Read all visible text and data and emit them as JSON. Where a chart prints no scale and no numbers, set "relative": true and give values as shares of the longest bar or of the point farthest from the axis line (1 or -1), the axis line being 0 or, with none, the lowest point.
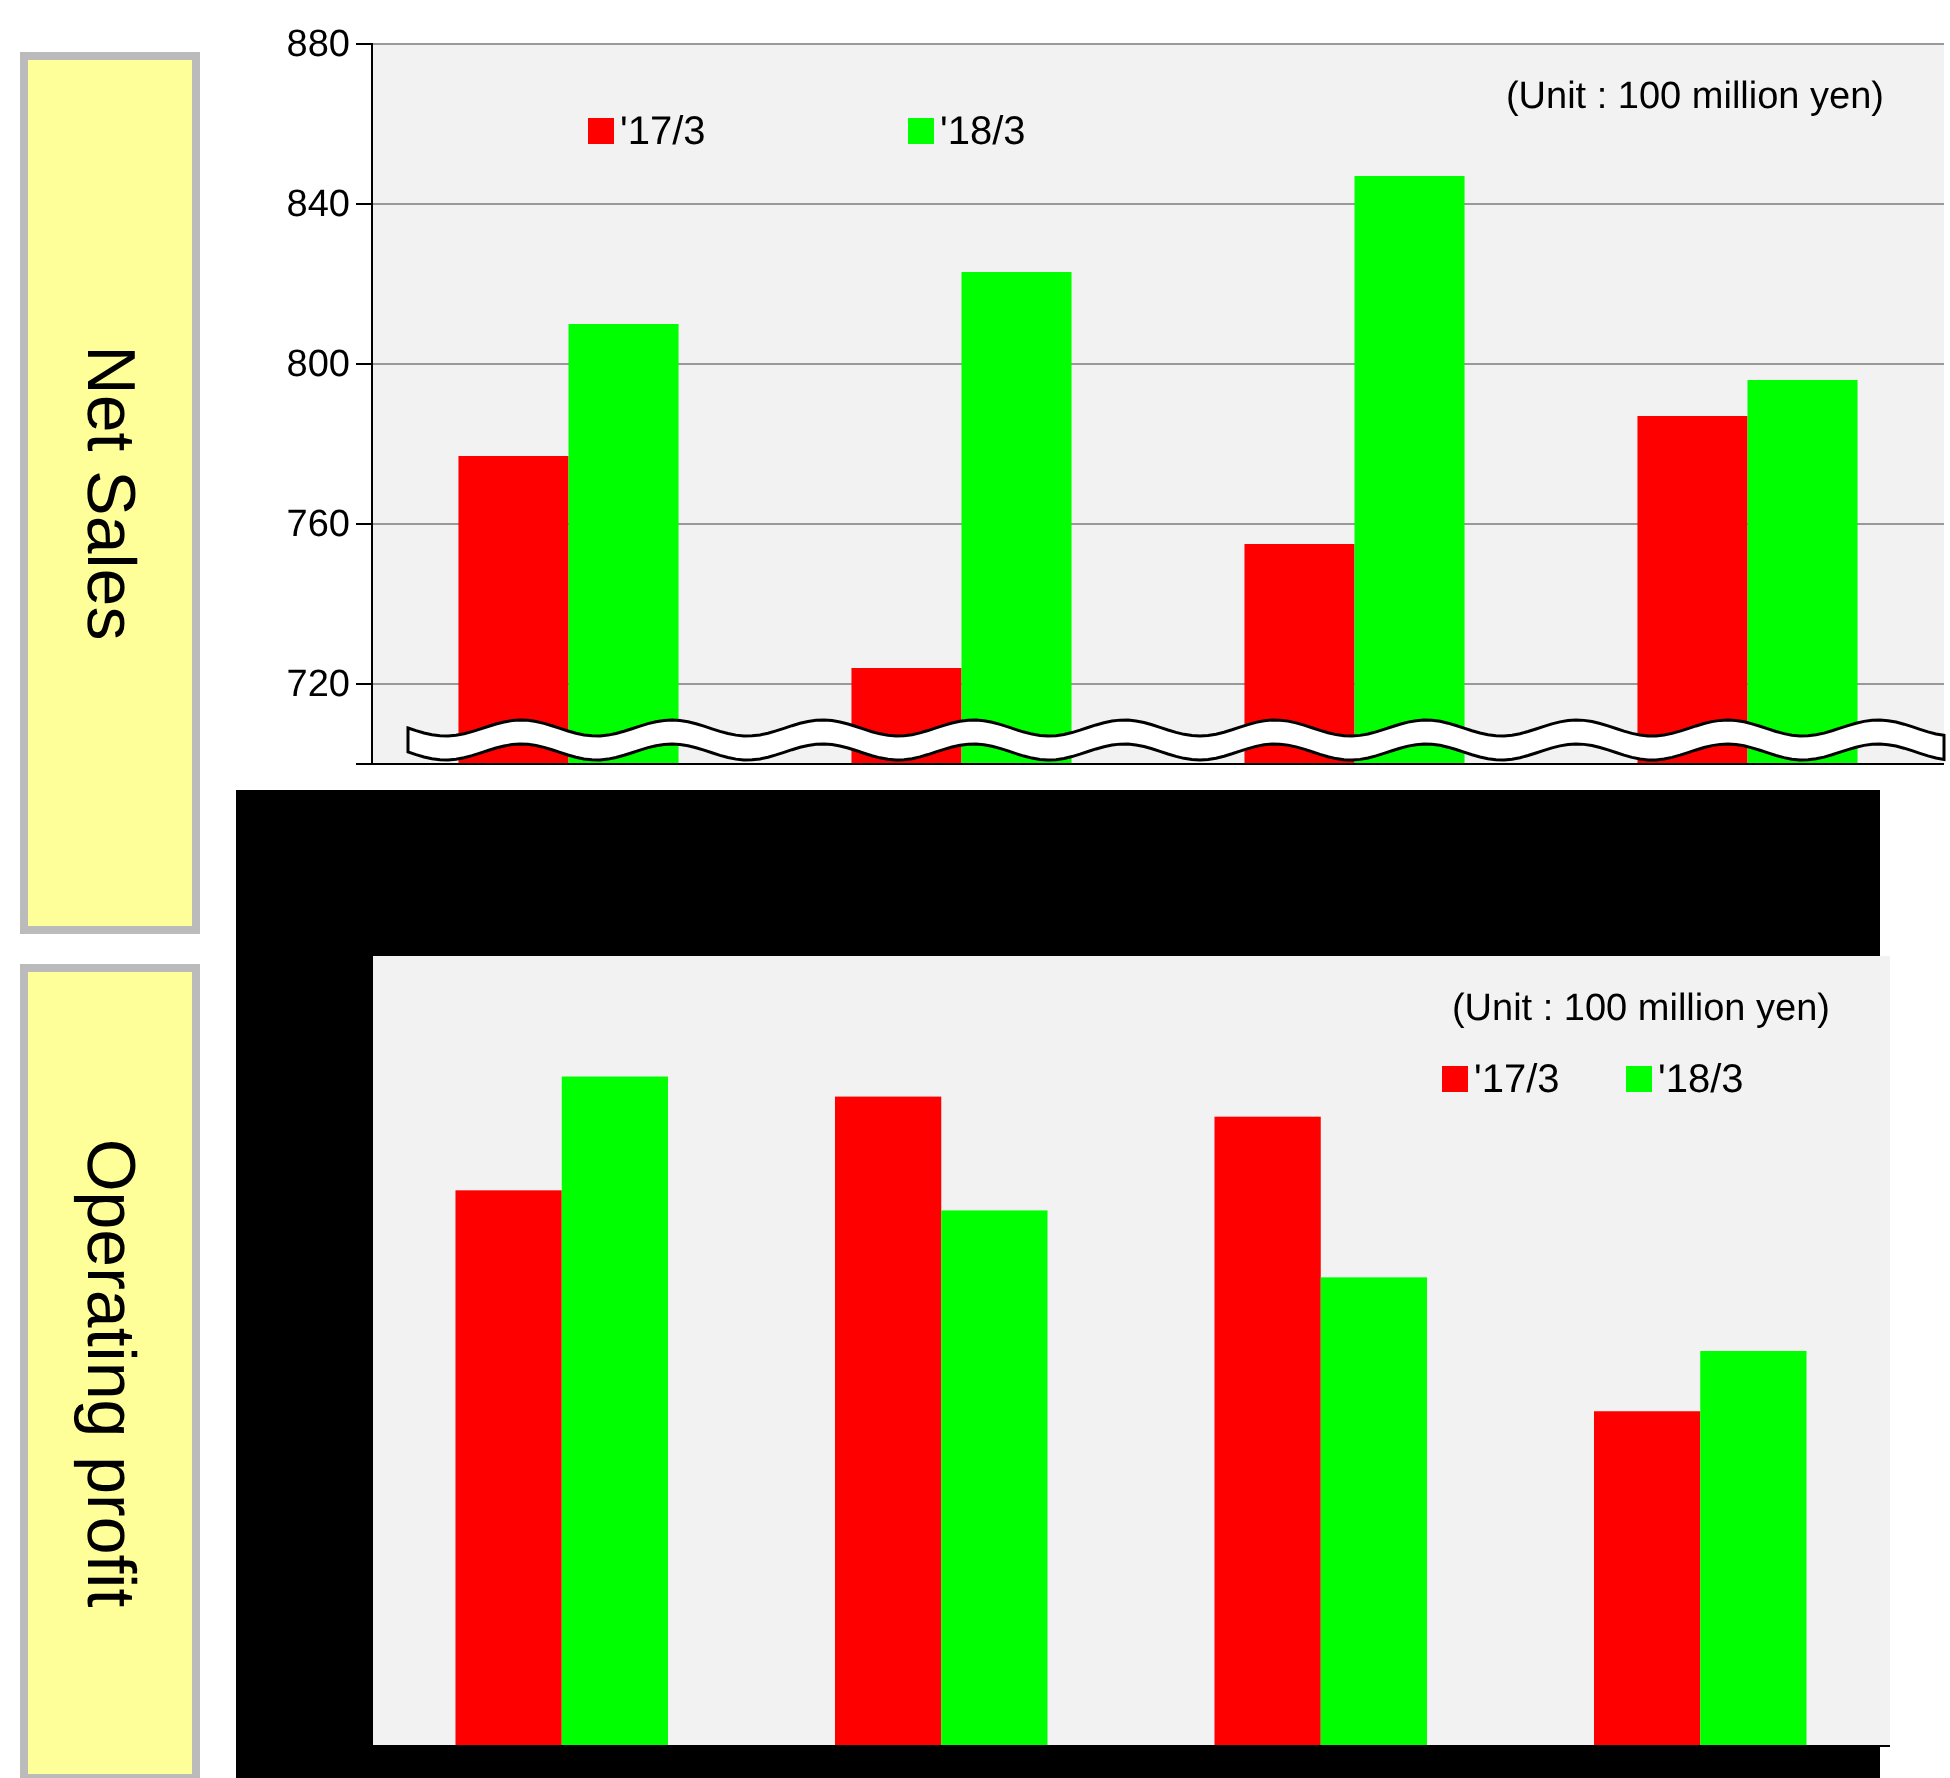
{
  "chart_data": [
    {
      "type": "bar",
      "ylabel": "Net Sales",
      "categories": [
        null,
        null,
        null,
        null
      ],
      "series": [
        {
          "name": "'17/3",
          "color": "#ff0000",
          "values": [
            777,
            724,
            755,
            787
          ]
        },
        {
          "name": "'18/3",
          "color": "#00ff00",
          "values": [
            810,
            823,
            847,
            796
          ]
        }
      ],
      "ylim": [
        700,
        880
      ],
      "yticks": [
        720,
        760,
        800,
        840,
        880
      ],
      "grid": "y",
      "legend": "top left",
      "annotations": [
        "(Unit : 100 million yen)"
      ]
    },
    {
      "type": "bar",
      "ylabel": "Operating profit",
      "categories": [
        null,
        null,
        null,
        null
      ],
      "relative": true,
      "series": [
        {
          "name": "'17/3",
          "color": "#ff0000",
          "values": [
            0.83,
            0.97,
            0.94,
            0.5
          ]
        },
        {
          "name": "'18/3",
          "color": "#00ff00",
          "values": [
            1,
            0.8,
            0.7,
            0.59
          ]
        }
      ],
      "legend": "top right",
      "annotations": [
        "(Unit : 100 million yen)"
      ]
    }
  ]
}
